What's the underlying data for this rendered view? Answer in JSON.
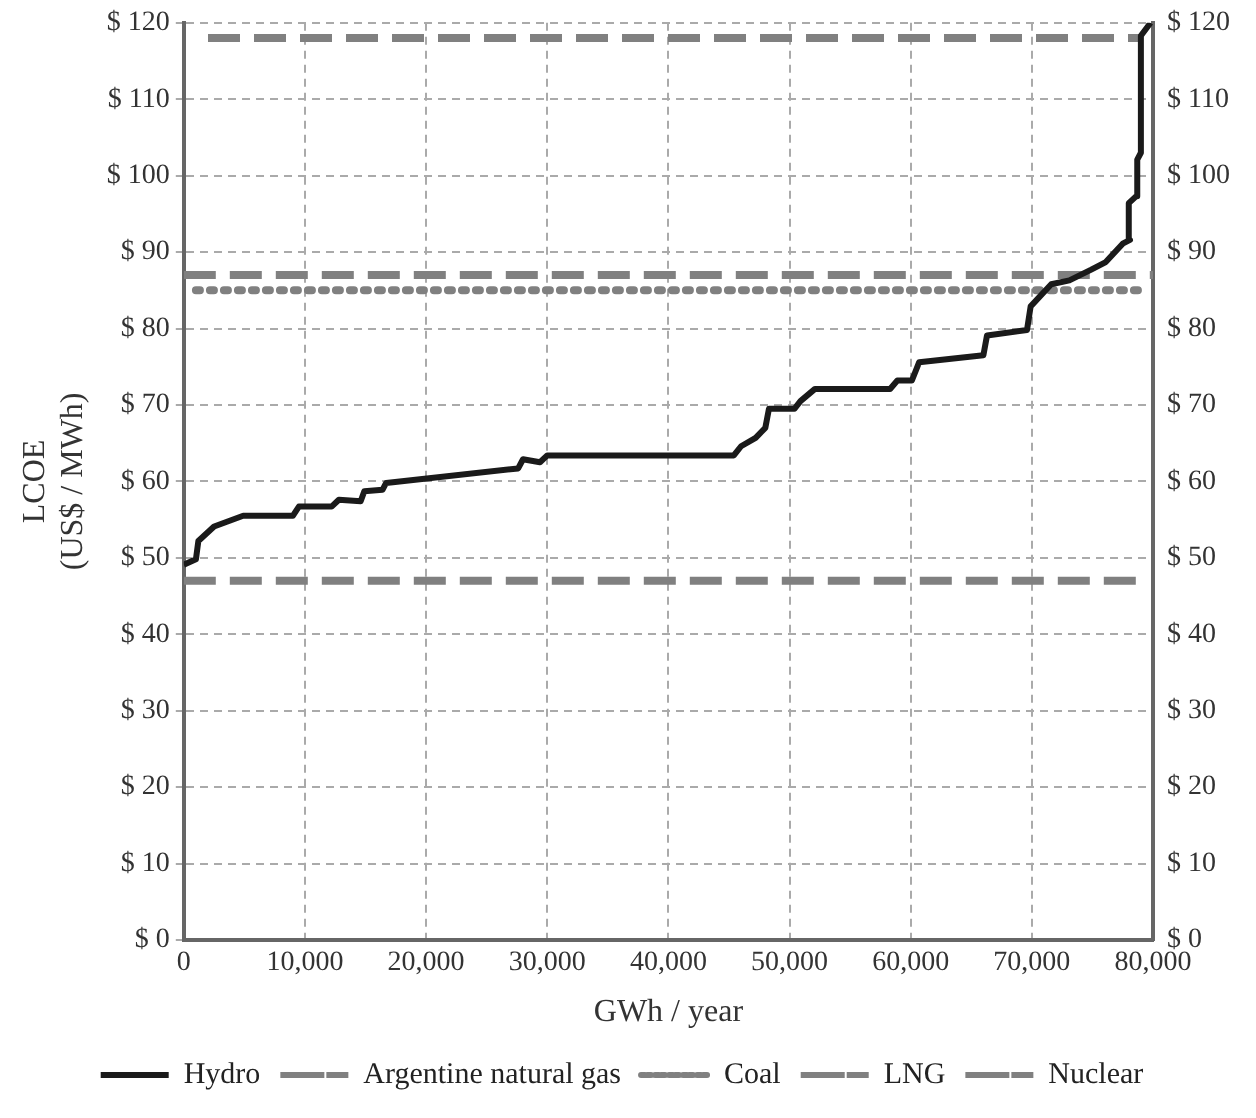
{
  "chart_data": {
    "type": "line",
    "xlabel": "GWh / year",
    "ylabel": "LCOE\n(US$ / MWh)",
    "xlim": [
      0,
      80000
    ],
    "xticks": [
      {
        "value": 0,
        "label": "0"
      },
      {
        "value": 10000,
        "label": "10,000"
      },
      {
        "value": 20000,
        "label": "20,000"
      },
      {
        "value": 30000,
        "label": "30,000"
      },
      {
        "value": 40000,
        "label": "40,000"
      },
      {
        "value": 50000,
        "label": "50,000"
      },
      {
        "value": 60000,
        "label": "60,000"
      },
      {
        "value": 70000,
        "label": "70,000"
      },
      {
        "value": 80000,
        "label": "80,000"
      }
    ],
    "ylim": [
      0,
      120
    ],
    "yticks": [
      {
        "value": 0,
        "label": "$ 0"
      },
      {
        "value": 10,
        "label": "$ 10"
      },
      {
        "value": 20,
        "label": "$ 20"
      },
      {
        "value": 30,
        "label": "$ 30"
      },
      {
        "value": 40,
        "label": "$ 40"
      },
      {
        "value": 50,
        "label": "$ 50"
      },
      {
        "value": 60,
        "label": "$ 60"
      },
      {
        "value": 70,
        "label": "$ 70"
      },
      {
        "value": 80,
        "label": "$ 80"
      },
      {
        "value": 90,
        "label": "$ 90"
      },
      {
        "value": 100,
        "label": "$ 100"
      },
      {
        "value": 110,
        "label": "$ 110"
      },
      {
        "value": 120,
        "label": "$ 120"
      }
    ],
    "y2lim": [
      0,
      120
    ],
    "y2ticks": [
      {
        "value": 0,
        "label": "$ 0"
      },
      {
        "value": 10,
        "label": "$ 10"
      },
      {
        "value": 20,
        "label": "$ 20"
      },
      {
        "value": 30,
        "label": "$ 30"
      },
      {
        "value": 40,
        "label": "$ 40"
      },
      {
        "value": 50,
        "label": "$ 50"
      },
      {
        "value": 60,
        "label": "$ 60"
      },
      {
        "value": 70,
        "label": "$ 70"
      },
      {
        "value": 80,
        "label": "$ 80"
      },
      {
        "value": 90,
        "label": "$ 90"
      },
      {
        "value": 100,
        "label": "$ 100"
      },
      {
        "value": 110,
        "label": "$ 110"
      },
      {
        "value": 120,
        "label": "$ 120"
      }
    ],
    "grid": true,
    "legend": "bottom",
    "marker": "none",
    "series": [
      {
        "name": "Hydro",
        "color": "#1a1a1a",
        "line_style": "solid",
        "x": [
          0,
          1000,
          1200,
          2500,
          4900,
          9000,
          9500,
          12200,
          12800,
          14600,
          14900,
          16400,
          16700,
          27600,
          28000,
          29400,
          30000,
          45400,
          46000,
          47200,
          48000,
          48300,
          50400,
          50900,
          52100,
          58300,
          58900,
          60100,
          60700,
          66000,
          66300,
          69600,
          69900,
          71600,
          73100,
          74900,
          76100,
          77500,
          78100,
          78000,
          78600,
          78700,
          79000,
          79000,
          79800
        ],
        "values": [
          49.1,
          49.8,
          52.2,
          54.1,
          55.5,
          55.5,
          56.7,
          56.7,
          57.6,
          57.4,
          58.7,
          58.9,
          59.8,
          61.7,
          62.9,
          62.5,
          63.4,
          63.4,
          64.6,
          65.7,
          67,
          69.5,
          69.5,
          70.5,
          72.1,
          72.1,
          73.2,
          73.2,
          75.6,
          76.5,
          79.1,
          79.8,
          82.9,
          85.8,
          86.3,
          87.7,
          88.7,
          91.1,
          91.6,
          96.4,
          97.3,
          102.1,
          103,
          118.3,
          120
        ]
      },
      {
        "name": "Argentine natural gas",
        "color": "#808080",
        "line_style": "dashed",
        "x": [
          0,
          79000
        ],
        "values": [
          47,
          47
        ]
      },
      {
        "name": "Coal",
        "color": "#808080",
        "line_style": "dotted",
        "x": [
          1000,
          79000
        ],
        "values": [
          85,
          85
        ]
      },
      {
        "name": "LNG",
        "color": "#808080",
        "line_style": "dashed",
        "x": [
          0,
          80000
        ],
        "values": [
          87,
          87
        ]
      },
      {
        "name": "Nuclear",
        "color": "#808080",
        "line_style": "dashed",
        "x": [
          2000,
          79000
        ],
        "values": [
          118,
          118
        ]
      }
    ]
  }
}
